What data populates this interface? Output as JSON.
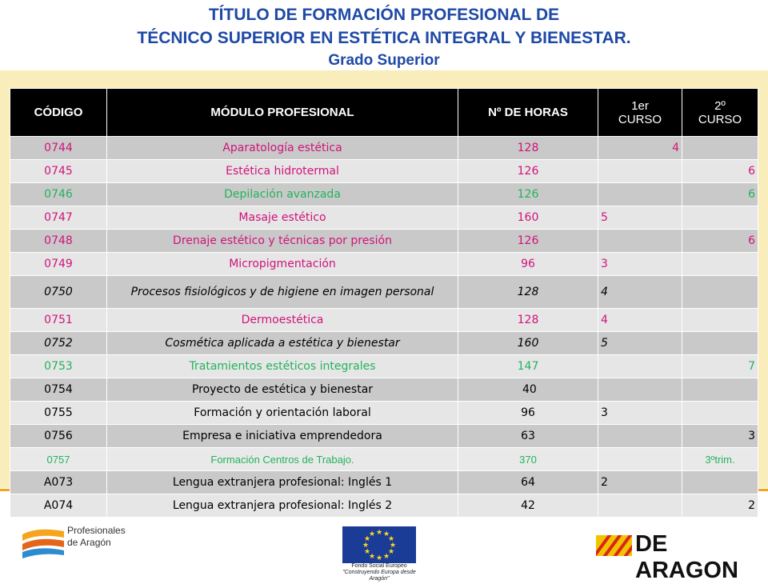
{
  "title": {
    "line1": "TÍTULO DE FORMACIÓN PROFESIONAL DE",
    "line2": "TÉCNICO SUPERIOR EN ESTÉTICA INTEGRAL Y BIENESTAR.",
    "line3": "Grado Superior"
  },
  "table": {
    "headers": {
      "code": "CÓDIGO",
      "module": "MÓDULO PROFESIONAL",
      "hours": "Nº DE HORAS",
      "course1_a": "1er",
      "course1_b": "CURSO",
      "course2_a": "2º",
      "course2_b": "CURSO"
    },
    "rows": [
      {
        "code": "0744",
        "module": "Aparatología estética",
        "hours": "128",
        "c1": "4",
        "c2": ""
      },
      {
        "code": "0745",
        "module": "Estética hidrotermal",
        "hours": "126",
        "c1": "",
        "c2": "6"
      },
      {
        "code": "0746",
        "module": "Depilación avanzada",
        "hours": "126",
        "c1": "",
        "c2": "6"
      },
      {
        "code": "0747",
        "module": "Masaje estético",
        "hours": "160",
        "c1": "5",
        "c2": ""
      },
      {
        "code": "0748",
        "module": "Drenaje estético y técnicas por presión",
        "hours": "126",
        "c1": "",
        "c2": "6"
      },
      {
        "code": "0749",
        "module": "Micropigmentación",
        "hours": "96",
        "c1": "3",
        "c2": ""
      },
      {
        "code": "0750",
        "module": "Procesos fisiológicos y de higiene en imagen personal",
        "hours": "128",
        "c1": "4",
        "c2": ""
      },
      {
        "code": "0751",
        "module": "Dermoestética",
        "hours": "128",
        "c1": "4",
        "c2": ""
      },
      {
        "code": "0752",
        "module": "Cosmética aplicada a estética y bienestar",
        "hours": "160",
        "c1": "5",
        "c2": ""
      },
      {
        "code": "0753",
        "module": "Tratamientos estéticos integrales",
        "hours": "147",
        "c1": "",
        "c2": "7"
      },
      {
        "code": "0754",
        "module": "Proyecto de estética y bienestar",
        "hours": "40",
        "c1": "",
        "c2": ""
      },
      {
        "code": "0755",
        "module": "Formación y orientación laboral",
        "hours": "96",
        "c1": "3",
        "c2": ""
      },
      {
        "code": "0756",
        "module": "Empresa e iniciativa emprendedora",
        "hours": "63",
        "c1": "",
        "c2": "3"
      },
      {
        "code": "0757",
        "module": "Formación Centros de Trabajo.",
        "hours": "370",
        "c1": "",
        "c2": "3ºtrim."
      },
      {
        "code": "A073",
        "module": "Lengua extranjera profesional: Inglés 1",
        "hours": "64",
        "c1": "2",
        "c2": ""
      },
      {
        "code": "A074",
        "module": "Lengua extranjera profesional: Inglés 2",
        "hours": "42",
        "c1": "",
        "c2": "2"
      }
    ]
  },
  "footer": {
    "left_line1": "Profesionales",
    "left_line2": "de Aragón",
    "fse_line1": "Fondo Social Europeo",
    "fse_line2": "\"Construyendo Europa desde Aragón\"",
    "right_logo": "DE ARAGON"
  },
  "colors": {
    "title_blue": "#1f49a6",
    "accent_orange": "#f5a51d",
    "band_yellow": "#f9eebb",
    "pink": "#d0137a",
    "green": "#22b35c"
  }
}
